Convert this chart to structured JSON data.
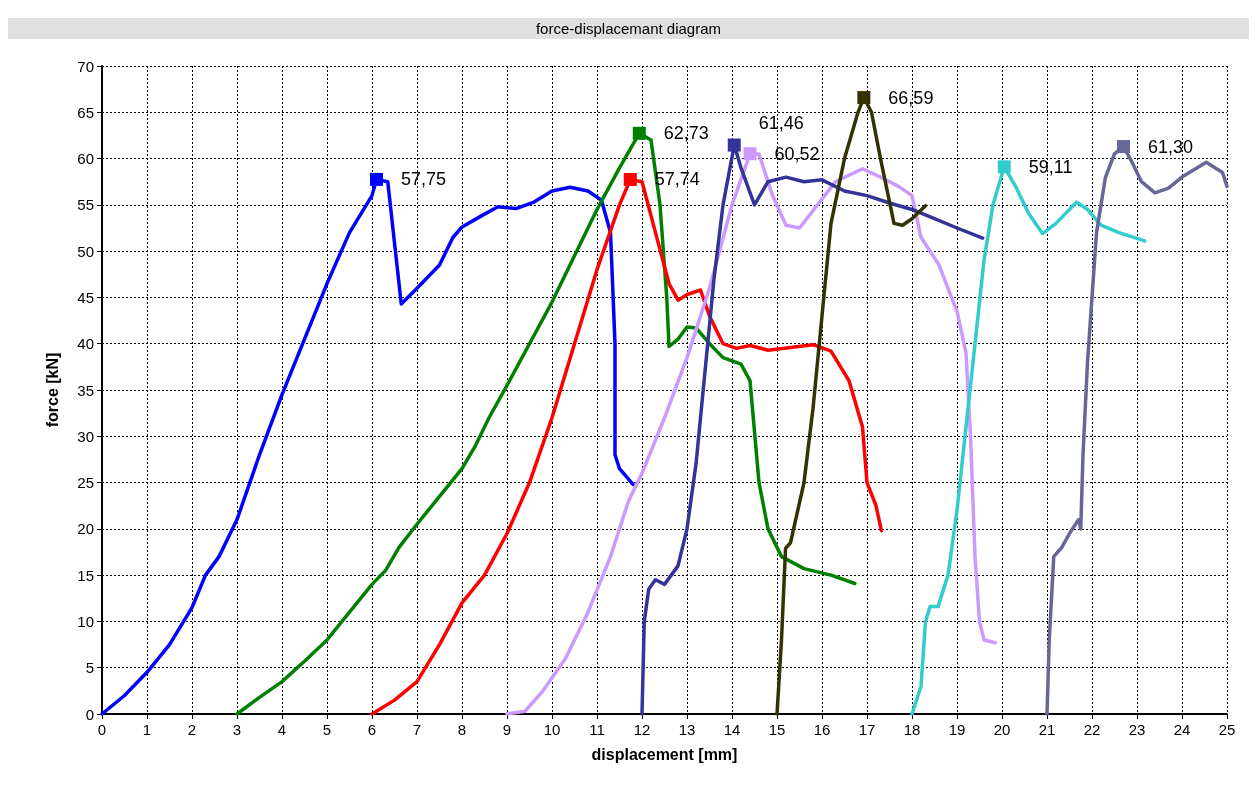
{
  "chart_data": {
    "type": "line",
    "title": "force-displacemant diagram",
    "xlabel": "displacement [mm]",
    "ylabel": "force [kN]",
    "xlim": [
      0,
      25
    ],
    "ylim": [
      0,
      70
    ],
    "xticks": [
      0,
      1,
      2,
      3,
      4,
      5,
      6,
      7,
      8,
      9,
      10,
      11,
      12,
      13,
      14,
      15,
      16,
      17,
      18,
      19,
      20,
      21,
      22,
      23,
      24,
      25
    ],
    "yticks": [
      0,
      5,
      10,
      15,
      20,
      25,
      30,
      35,
      40,
      45,
      50,
      55,
      60,
      65,
      70
    ],
    "grid": true,
    "line_style": "solid",
    "series": [
      {
        "color": "#0000ff",
        "x": [
          0,
          0.5,
          1,
          1.5,
          2,
          2.3,
          2.6,
          3,
          3.5,
          4,
          4.5,
          5,
          5.5,
          6,
          6.1,
          6.35,
          6.65,
          7,
          7.5,
          7.8,
          8,
          8.5,
          8.8,
          9.2,
          9.6,
          10,
          10.4,
          10.8,
          11.1,
          11.3,
          11.4,
          11.4,
          11.5,
          11.8
        ],
        "values": [
          0,
          2,
          4.5,
          7.5,
          11.5,
          15,
          17,
          21,
          28,
          34.5,
          40.5,
          46.5,
          52,
          56,
          57.75,
          57.5,
          44.3,
          46,
          48.5,
          51.5,
          52.6,
          54,
          54.8,
          54.6,
          55.3,
          56.5,
          56.9,
          56.5,
          55.5,
          52,
          40,
          28,
          26.5,
          24.8
        ],
        "value_labels": [
          null,
          null,
          null,
          null,
          null,
          null,
          null,
          null,
          null,
          null,
          null,
          null,
          null,
          null,
          "57,75",
          null,
          null,
          null,
          null,
          null,
          null,
          null,
          null,
          null,
          null,
          null,
          null,
          null,
          null,
          null,
          null,
          null,
          null,
          null
        ]
      },
      {
        "color": "#008000",
        "x": [
          3,
          3.5,
          4,
          4.5,
          5,
          5.5,
          6,
          6.3,
          6.6,
          7,
          7.5,
          8,
          8.3,
          8.6,
          9,
          9.5,
          10,
          10.5,
          11,
          11.5,
          11.94,
          12.2,
          12.4,
          12.55,
          12.6,
          12.8,
          13,
          13.2,
          13.5,
          13.8,
          14.2,
          14.4,
          14.6,
          14.8,
          15.1,
          15.6,
          16.2,
          16.73
        ],
        "values": [
          0,
          1.8,
          3.5,
          5.7,
          8,
          11,
          14,
          15.5,
          18,
          20.5,
          23.5,
          26.5,
          29,
          32,
          35.5,
          40,
          44.5,
          49.5,
          54.5,
          59,
          62.73,
          62,
          55,
          45,
          39.7,
          40.5,
          41.8,
          41.7,
          40,
          38.5,
          37.8,
          36,
          25,
          20,
          17,
          15.7,
          15,
          14.1
        ],
        "value_labels": [
          null,
          null,
          null,
          null,
          null,
          null,
          null,
          null,
          null,
          null,
          null,
          null,
          null,
          null,
          null,
          null,
          null,
          null,
          null,
          null,
          "62,73",
          null,
          null,
          null,
          null,
          null,
          null,
          null,
          null,
          null,
          null,
          null,
          null,
          null,
          null,
          null,
          null,
          null
        ]
      },
      {
        "color": "#ff0000",
        "x": [
          6,
          6.5,
          7,
          7.5,
          8,
          8.5,
          9,
          9.5,
          10,
          10.5,
          11,
          11.5,
          11.74,
          12,
          12.3,
          12.6,
          12.8,
          13,
          13.3,
          13.5,
          13.8,
          14.1,
          14.4,
          14.8,
          15.3,
          15.8,
          16.2,
          16.6,
          16.9,
          17,
          17.2,
          17.32
        ],
        "values": [
          0,
          1.5,
          3.5,
          7.5,
          12,
          15,
          19.5,
          25,
          32,
          40,
          48,
          55,
          57.74,
          57.5,
          52,
          46.5,
          44.7,
          45.3,
          45.8,
          43,
          40,
          39.5,
          39.8,
          39.3,
          39.6,
          39.9,
          39.2,
          36,
          31,
          25,
          22.5,
          19.8
        ],
        "value_labels": [
          null,
          null,
          null,
          null,
          null,
          null,
          null,
          null,
          null,
          null,
          null,
          null,
          "57,74",
          null,
          null,
          null,
          null,
          null,
          null,
          null,
          null,
          null,
          null,
          null,
          null,
          null,
          null,
          null,
          null,
          null,
          null,
          null
        ]
      },
      {
        "color": "#cc99ff",
        "x": [
          9,
          9.4,
          9.8,
          10.3,
          10.8,
          11.3,
          11.7,
          12,
          12.5,
          13,
          13.5,
          14,
          14.4,
          14.6,
          14.9,
          15.2,
          15.5,
          15.9,
          16.3,
          16.9,
          17.3,
          17.7,
          18,
          18.2,
          18.6,
          19,
          19.2,
          19.3,
          19.4,
          19.5,
          19.6,
          19.85
        ],
        "values": [
          0,
          0.3,
          2.5,
          6,
          11,
          17,
          23,
          26,
          32,
          38.5,
          46,
          55,
          60.52,
          60.5,
          56,
          52.8,
          52.5,
          55,
          57.5,
          58.9,
          58,
          57,
          56,
          51.5,
          48.5,
          43.5,
          39,
          30,
          17,
          10,
          8,
          7.7
        ],
        "value_labels": [
          null,
          null,
          null,
          null,
          null,
          null,
          null,
          null,
          null,
          null,
          null,
          null,
          "60,52",
          null,
          null,
          null,
          null,
          null,
          null,
          null,
          null,
          null,
          null,
          null,
          null,
          null,
          null,
          null,
          null,
          null,
          null,
          null
        ]
      },
      {
        "color": "#333399",
        "x": [
          12,
          12.05,
          12.15,
          12.3,
          12.5,
          12.8,
          13,
          13.2,
          13.4,
          13.6,
          13.8,
          14.05,
          14.2,
          14.5,
          14.8,
          15.2,
          15.6,
          16,
          16.5,
          17,
          17.5,
          18,
          18.5,
          19,
          19.57
        ],
        "values": [
          0,
          10,
          13.5,
          14.5,
          14,
          16,
          20,
          27,
          37,
          47,
          55,
          61.46,
          59,
          55,
          57.5,
          58,
          57.5,
          57.7,
          56.5,
          56,
          55.2,
          54.5,
          53.5,
          52.5,
          51.4
        ],
        "value_labels": [
          null,
          null,
          null,
          null,
          null,
          null,
          null,
          null,
          null,
          null,
          null,
          "61,46",
          null,
          null,
          null,
          null,
          null,
          null,
          null,
          null,
          null,
          null,
          null,
          null,
          null
        ]
      },
      {
        "color": "#333300",
        "x": [
          15,
          15.1,
          15.19,
          15.3,
          15.6,
          15.8,
          16,
          16.2,
          16.5,
          16.8,
          16.93,
          17.1,
          17.3,
          17.6,
          17.79,
          18,
          18.3
        ],
        "values": [
          0,
          8,
          17.9,
          18.5,
          25,
          33,
          43,
          53,
          60,
          65,
          66.59,
          65,
          60,
          53,
          52.8,
          53.5,
          54.9
        ],
        "value_labels": [
          null,
          null,
          null,
          null,
          null,
          null,
          null,
          null,
          null,
          null,
          "66,59",
          null,
          null,
          null,
          null,
          null,
          null
        ]
      },
      {
        "color": "#33cccc",
        "x": [
          18,
          18.2,
          18.3,
          18.4,
          18.58,
          18.8,
          19,
          19.2,
          19.4,
          19.6,
          19.8,
          20.05,
          20.3,
          20.6,
          20.9,
          21.2,
          21.66,
          21.9,
          22.2,
          22.6,
          23.17
        ],
        "values": [
          0,
          3,
          10,
          11.6,
          11.6,
          15,
          22,
          31,
          40,
          49,
          55,
          59.11,
          57,
          54,
          51.9,
          53,
          55.3,
          54.5,
          52.8,
          52,
          51.1
        ],
        "value_labels": [
          null,
          null,
          null,
          null,
          null,
          null,
          null,
          null,
          null,
          null,
          null,
          "59,11",
          null,
          null,
          null,
          null,
          null,
          null,
          null,
          null,
          null
        ]
      },
      {
        "color": "#666699",
        "x": [
          21,
          21.05,
          21.15,
          21.33,
          21.5,
          21.7,
          21.75,
          21.8,
          21.9,
          22,
          22.1,
          22.3,
          22.5,
          22.7,
          22.9,
          23.1,
          23.4,
          23.7,
          24,
          24.54,
          24.9,
          25
        ],
        "values": [
          0,
          8,
          17,
          18,
          19.5,
          21,
          20,
          28,
          38,
          45,
          52,
          58,
          60.5,
          61.3,
          59.5,
          57.5,
          56.3,
          56.8,
          58,
          59.6,
          58.5,
          57
        ],
        "value_labels": [
          null,
          null,
          null,
          null,
          null,
          null,
          null,
          null,
          null,
          null,
          null,
          null,
          null,
          "61,30",
          null,
          null,
          null,
          null,
          null,
          null,
          null,
          null
        ]
      }
    ]
  }
}
